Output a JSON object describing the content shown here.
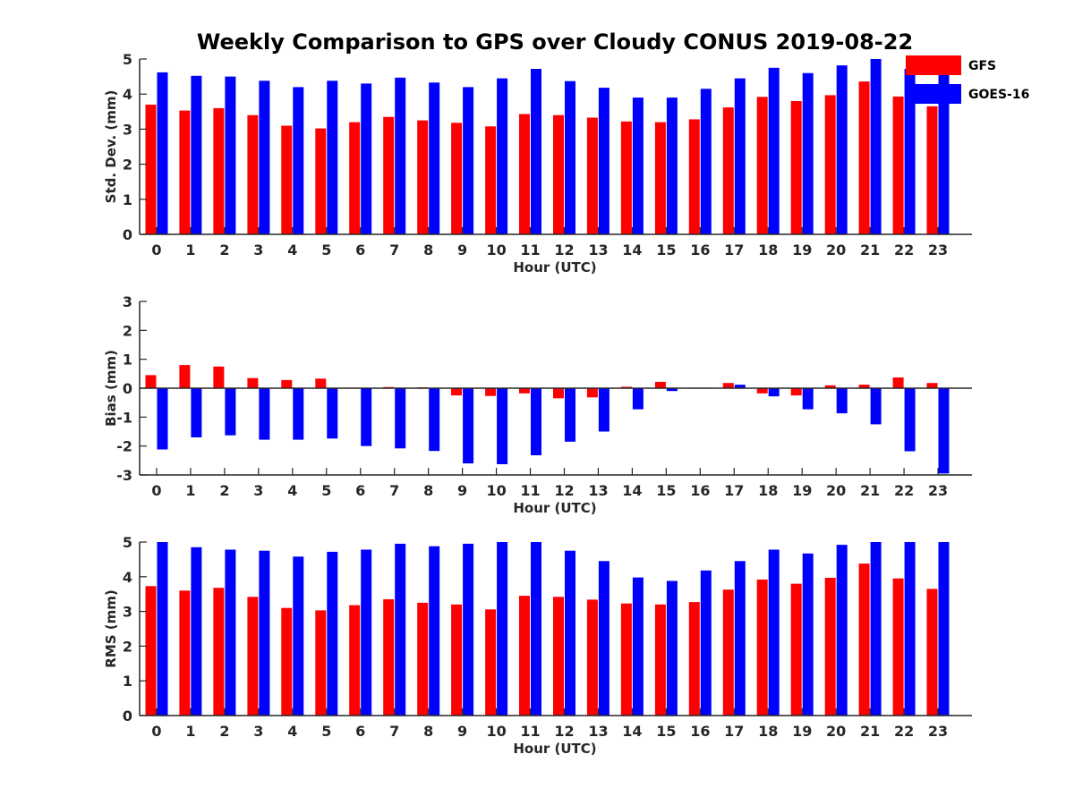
{
  "title": "Weekly Comparison to GPS over Cloudy CONUS 2019-08-22",
  "legend": [
    {
      "name": "GFS",
      "color": "#ff0000"
    },
    {
      "name": "GOES-16",
      "color": "#0000ff"
    }
  ],
  "chart_data": [
    {
      "type": "bar",
      "ylabel": "Std. Dev. (mm)",
      "xlabel": "Hour (UTC)",
      "ylim": [
        0,
        5
      ],
      "yticks": [
        "0",
        "1",
        "2",
        "3",
        "4",
        "5"
      ],
      "categories": [
        "0",
        "1",
        "2",
        "3",
        "4",
        "5",
        "6",
        "7",
        "8",
        "9",
        "10",
        "11",
        "12",
        "13",
        "14",
        "15",
        "16",
        "17",
        "18",
        "19",
        "20",
        "21",
        "22",
        "23"
      ],
      "series": [
        {
          "name": "GFS",
          "color": "#ff0000",
          "values": [
            3.7,
            3.53,
            3.6,
            3.4,
            3.1,
            3.02,
            3.2,
            3.35,
            3.25,
            3.18,
            3.08,
            3.43,
            3.4,
            3.33,
            3.22,
            3.2,
            3.28,
            3.62,
            3.92,
            3.8,
            3.97,
            4.36,
            3.93,
            3.65
          ]
        },
        {
          "name": "GOES-16",
          "color": "#0000ff",
          "values": [
            4.62,
            4.52,
            4.5,
            4.38,
            4.2,
            4.38,
            4.3,
            4.47,
            4.33,
            4.2,
            4.45,
            4.72,
            4.37,
            4.18,
            3.9,
            3.9,
            4.15,
            4.45,
            4.75,
            4.6,
            4.82,
            5.0,
            4.72,
            4.62
          ]
        }
      ]
    },
    {
      "type": "bar",
      "ylabel": "Bias (mm)",
      "xlabel": "Hour (UTC)",
      "ylim": [
        -3,
        3
      ],
      "yticks": [
        "-3",
        "-2",
        "-1",
        "0",
        "1",
        "2",
        "3"
      ],
      "categories": [
        "0",
        "1",
        "2",
        "3",
        "4",
        "5",
        "6",
        "7",
        "8",
        "9",
        "10",
        "11",
        "12",
        "13",
        "14",
        "15",
        "16",
        "17",
        "18",
        "19",
        "20",
        "21",
        "22",
        "23"
      ],
      "series": [
        {
          "name": "GFS",
          "color": "#ff0000",
          "values": [
            0.45,
            0.8,
            0.75,
            0.35,
            0.28,
            0.33,
            0.02,
            0.04,
            0.03,
            -0.25,
            -0.27,
            -0.18,
            -0.35,
            -0.32,
            0.05,
            0.22,
            0.02,
            0.18,
            -0.18,
            -0.25,
            0.1,
            0.12,
            0.37,
            0.18
          ]
        },
        {
          "name": "GOES-16",
          "color": "#0000ff",
          "values": [
            -2.12,
            -1.7,
            -1.63,
            -1.78,
            -1.78,
            -1.74,
            -2.0,
            -2.08,
            -2.17,
            -2.6,
            -2.63,
            -2.32,
            -1.85,
            -1.5,
            -0.73,
            -0.1,
            0.02,
            0.12,
            -0.28,
            -0.73,
            -0.87,
            -1.25,
            -2.18,
            -2.95
          ]
        }
      ]
    },
    {
      "type": "bar",
      "ylabel": "RMS (mm)",
      "xlabel": "Hour (UTC)",
      "ylim": [
        0,
        5
      ],
      "yticks": [
        "0",
        "1",
        "2",
        "3",
        "4",
        "5"
      ],
      "categories": [
        "0",
        "1",
        "2",
        "3",
        "4",
        "5",
        "6",
        "7",
        "8",
        "9",
        "10",
        "11",
        "12",
        "13",
        "14",
        "15",
        "16",
        "17",
        "18",
        "19",
        "20",
        "21",
        "22",
        "23"
      ],
      "series": [
        {
          "name": "GFS",
          "color": "#ff0000",
          "values": [
            3.73,
            3.6,
            3.68,
            3.42,
            3.1,
            3.03,
            3.18,
            3.35,
            3.25,
            3.2,
            3.06,
            3.45,
            3.42,
            3.34,
            3.23,
            3.2,
            3.27,
            3.63,
            3.92,
            3.8,
            3.97,
            4.38,
            3.95,
            3.65
          ]
        },
        {
          "name": "GOES-16",
          "color": "#0000ff",
          "values": [
            5.0,
            4.85,
            4.78,
            4.75,
            4.58,
            4.72,
            4.78,
            4.95,
            4.88,
            4.95,
            5.0,
            5.0,
            4.75,
            4.45,
            3.98,
            3.88,
            4.18,
            4.45,
            4.78,
            4.67,
            4.92,
            5.0,
            5.0,
            5.0
          ]
        }
      ]
    }
  ]
}
